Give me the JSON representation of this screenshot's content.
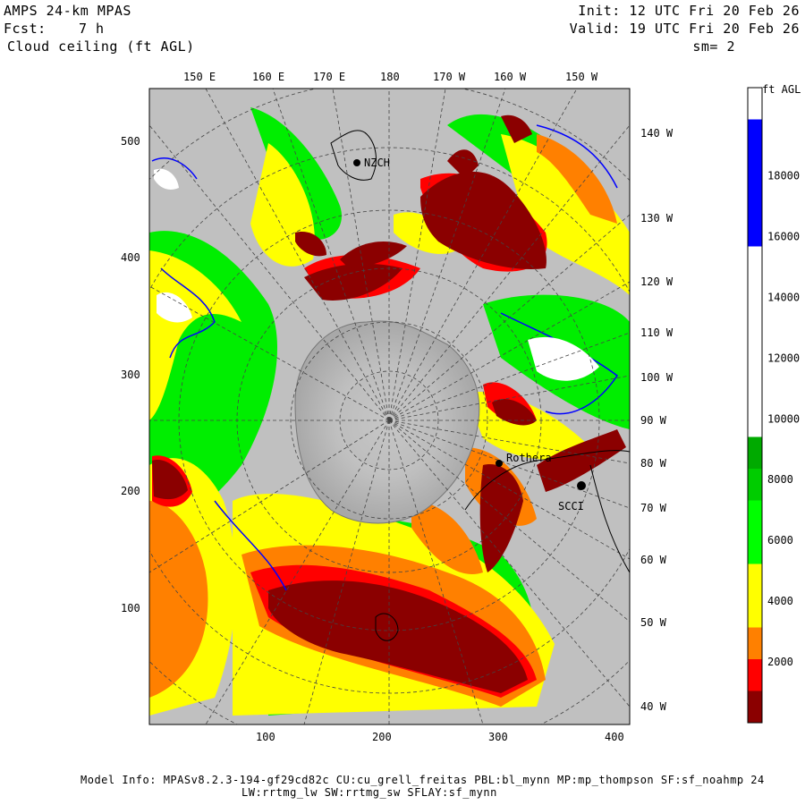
{
  "header": {
    "model": "AMPS 24-km MPAS",
    "fcst_label": "Fcst:",
    "fcst_value": "7 h",
    "field": "Cloud ceiling (ft AGL)",
    "init": "Init: 12 UTC Fri 20 Feb 26",
    "valid": "Valid: 19 UTC Fri 20 Feb 26",
    "smoothing": "sm= 2"
  },
  "map": {
    "top_lon_labels": [
      "150 E",
      "160 E",
      "170 E",
      "180",
      "170 W",
      "160 W",
      "150 W"
    ],
    "right_lon_labels": [
      "140 W",
      "130 W",
      "120 W",
      "110 W",
      "100 W",
      "90 W",
      "80 W",
      "70 W",
      "60 W",
      "50 W",
      "40 W"
    ],
    "y_ticks": [
      100,
      200,
      300,
      400,
      500
    ],
    "x_ticks": [
      100,
      200,
      300,
      400
    ],
    "stations": [
      {
        "name": "NZCH"
      },
      {
        "name": "Rothera"
      },
      {
        "name": "SCCI"
      }
    ],
    "colors": {
      "land": "#c0c0c0",
      "dark_red": "#8b0000",
      "red": "#ff0000",
      "orange": "#ff8000",
      "yellow": "#ffff00",
      "green": "#00ee00",
      "blue": "#0000ff"
    }
  },
  "colorbar": {
    "unit": "ft AGL",
    "ticks": [
      "2000",
      "4000",
      "6000",
      "8000",
      "10000",
      "12000",
      "14000",
      "16000",
      "18000"
    ],
    "colors": [
      "#8b0000",
      "#ff0000",
      "#ff8000",
      "#ffff00",
      "#ffff00",
      "#00ff00",
      "#00ff00",
      "#00cc00",
      "#00aa00",
      "#ffffff",
      "#ffffff",
      "#ffffff",
      "#ffffff",
      "#ffffff",
      "#ffffff",
      "#0000ff",
      "#0000ff",
      "#0000ff",
      "#0000ff",
      "#ffffff"
    ]
  },
  "footer": {
    "line1": "Model Info: MPASv8.2.3-194-gf29cd82c CU:cu_grell_freitas PBL:bl_mynn MP:mp_thompson SF:sf_noahmp 24",
    "line2": "LW:rrtmg_lw SW:rrtmg_sw SFLAY:sf_mynn"
  }
}
